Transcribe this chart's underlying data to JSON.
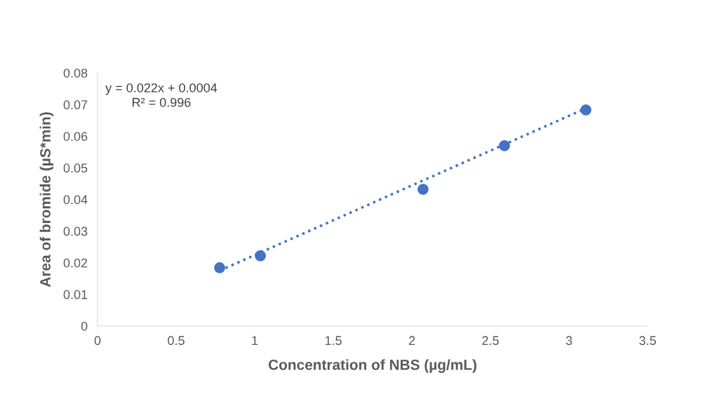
{
  "chart_data": {
    "type": "scatter",
    "xlabel": "Concentration of NBS (µg/mL)",
    "ylabel": "Area of bromide (µS*min)",
    "series": [
      {
        "marker": "circle",
        "color": "#4472c4",
        "x": [
          0.777,
          1.036,
          2.071,
          2.589,
          3.107
        ],
        "values": [
          0.0184,
          0.0222,
          0.0432,
          0.057,
          0.0683
        ]
      },
      {
        "type": "line",
        "color": "#4472c4",
        "line_style": "dotted",
        "x": [
          0.777,
          3.107
        ],
        "values": [
          0.0175,
          0.0688
        ]
      }
    ],
    "xlim": [
      0,
      3.5
    ],
    "xticks": [
      0,
      0.5,
      1,
      1.5,
      2,
      2.5,
      3,
      3.5
    ],
    "ylim": [
      0,
      0.08
    ],
    "yticks": [
      0,
      0.01,
      0.02,
      0.03,
      0.04,
      0.05,
      0.06,
      0.07,
      0.08
    ],
    "grid": false,
    "legend": false,
    "annotations": [
      "y = 0.022x + 0.0004",
      "R² = 0.996"
    ]
  }
}
